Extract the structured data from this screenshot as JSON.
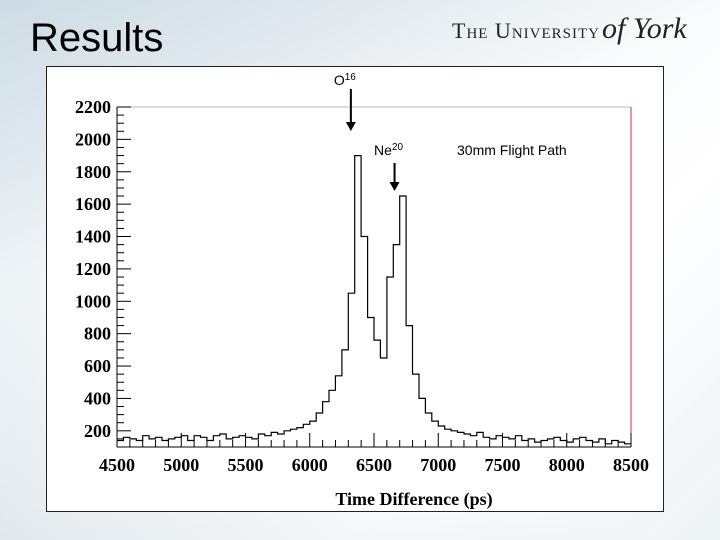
{
  "slide": {
    "title": "Results"
  },
  "logo": {
    "main": "The University",
    "script": "of York"
  },
  "chart_data": {
    "type": "histogram",
    "xlabel": "Time Difference (ps)",
    "ylabel": "",
    "xlim": [
      4500,
      8500
    ],
    "ylim": [
      100,
      2200
    ],
    "xticks": [
      4500,
      5000,
      5500,
      6000,
      6500,
      7000,
      7500,
      8000,
      8500
    ],
    "yticks": [
      200,
      400,
      600,
      800,
      1000,
      1200,
      1400,
      1600,
      1800,
      2000,
      2200
    ],
    "annotations": [
      {
        "label": "O",
        "sup": "16",
        "x": 6320
      },
      {
        "label": "Ne",
        "sup": "20",
        "x": 6660
      }
    ],
    "note": "30mm Flight Path",
    "x": [
      4500,
      4550,
      4600,
      4650,
      4700,
      4750,
      4800,
      4850,
      4900,
      4950,
      5000,
      5050,
      5100,
      5150,
      5200,
      5250,
      5300,
      5350,
      5400,
      5450,
      5500,
      5550,
      5600,
      5650,
      5700,
      5750,
      5800,
      5850,
      5900,
      5950,
      6000,
      6050,
      6100,
      6150,
      6200,
      6250,
      6300,
      6350,
      6400,
      6450,
      6500,
      6550,
      6600,
      6650,
      6700,
      6750,
      6800,
      6850,
      6900,
      6950,
      7000,
      7050,
      7100,
      7150,
      7200,
      7250,
      7300,
      7350,
      7400,
      7450,
      7500,
      7550,
      7600,
      7650,
      7700,
      7750,
      7800,
      7850,
      7900,
      7950,
      8000,
      8050,
      8100,
      8150,
      8200,
      8250,
      8300,
      8350,
      8400,
      8450
    ],
    "values": [
      140,
      160,
      150,
      140,
      170,
      150,
      160,
      140,
      150,
      160,
      170,
      140,
      170,
      160,
      140,
      170,
      180,
      150,
      160,
      170,
      160,
      150,
      180,
      170,
      190,
      180,
      200,
      210,
      220,
      240,
      260,
      310,
      380,
      450,
      540,
      700,
      1050,
      1900,
      1400,
      900,
      760,
      650,
      1150,
      1350,
      1650,
      850,
      550,
      400,
      310,
      260,
      230,
      210,
      200,
      190,
      180,
      170,
      190,
      160,
      150,
      170,
      160,
      150,
      170,
      140,
      150,
      130,
      140,
      150,
      160,
      140,
      130,
      150,
      160,
      140,
      130,
      150,
      120,
      140,
      130,
      120
    ]
  },
  "colors": {
    "histogram": "#000000",
    "frame_right": "#cc3333",
    "background": "#ffffff"
  }
}
